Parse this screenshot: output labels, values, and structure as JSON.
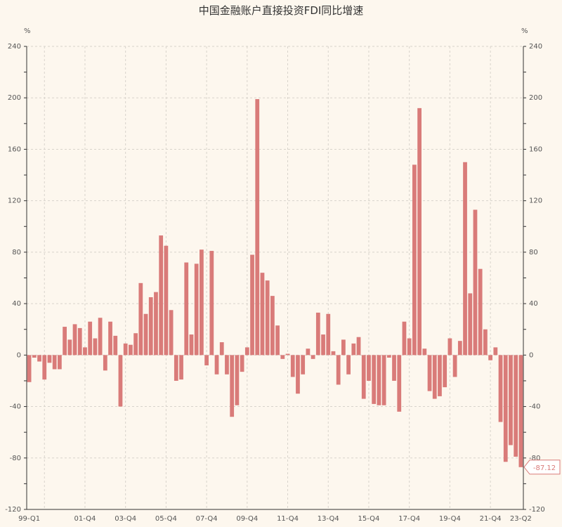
{
  "chart_data": {
    "type": "bar",
    "title": "中国金融账户直接投资FDI同比增速",
    "ylabel_left": "%",
    "ylabel_right": "%",
    "ylim": [
      -120,
      240
    ],
    "yticks": [
      -120,
      -80,
      -40,
      0,
      40,
      80,
      120,
      160,
      200,
      240
    ],
    "grid": true,
    "bar_color": "#d97b79",
    "xtick_labels": [
      "99-Q1",
      "01-Q4",
      "03-Q4",
      "05-Q4",
      "07-Q4",
      "09-Q4",
      "11-Q4",
      "13-Q4",
      "15-Q4",
      "17-Q4",
      "19-Q4",
      "21-Q4",
      "23-Q2"
    ],
    "start_quarter": "1999-Q1",
    "end_quarter": "2023-Q2",
    "values": [
      -21,
      -2,
      -5,
      -19,
      -6,
      -11,
      -11,
      22,
      12,
      24,
      21,
      6,
      26,
      13,
      29,
      -12,
      26,
      15,
      -40,
      9,
      8,
      17,
      56,
      32,
      45,
      49,
      93,
      85,
      35,
      -20,
      -19,
      72,
      16,
      71,
      82,
      -8,
      81,
      -15,
      10,
      -15,
      -48,
      -39,
      -13,
      6,
      78,
      199,
      64,
      58,
      46,
      23,
      -3,
      1,
      -17,
      -30,
      -15,
      5,
      -3,
      33,
      16,
      32,
      3,
      -23,
      12,
      -15,
      9,
      14,
      -34,
      -20,
      -38,
      -39,
      -39,
      -2,
      -20,
      -44,
      26,
      13,
      148,
      192,
      5,
      -28,
      -34,
      -32,
      -25,
      13,
      -17,
      11,
      150,
      48,
      113,
      67,
      20,
      -4,
      6,
      -52,
      -83,
      -70,
      -79,
      -87.12
    ],
    "last_value_label": "-87.12"
  }
}
